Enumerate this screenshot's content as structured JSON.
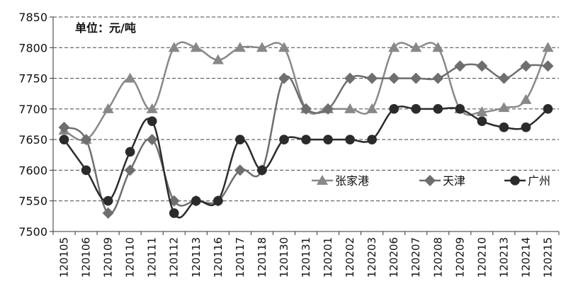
{
  "chart_data": {
    "type": "line",
    "unit_label": "单位：元/吨",
    "categories": [
      "120105",
      "120106",
      "120109",
      "120110",
      "120111",
      "120112",
      "120113",
      "120116",
      "120117",
      "120118",
      "120130",
      "120131",
      "120201",
      "120202",
      "120203",
      "120206",
      "120207",
      "120208",
      "120209",
      "120210",
      "120213",
      "120214",
      "120215"
    ],
    "ylim": [
      7500,
      7850
    ],
    "yticks": [
      7500,
      7550,
      7600,
      7650,
      7700,
      7750,
      7800,
      7850
    ],
    "grid": "horizontal-dashed",
    "legend_position": "middle-right",
    "series": [
      {
        "name": "张家港",
        "marker": "triangle",
        "color": "#888888",
        "values": [
          7665,
          7650,
          7700,
          7750,
          7700,
          7800,
          7800,
          7780,
          7800,
          7800,
          7800,
          7700,
          7700,
          7700,
          7700,
          7800,
          7800,
          7800,
          7700,
          7695,
          7702,
          7715,
          7800
        ]
      },
      {
        "name": "天津",
        "marker": "diamond",
        "color": "#6e6e6e",
        "values": [
          7670,
          7650,
          7530,
          7600,
          7650,
          7550,
          7550,
          7550,
          7600,
          7600,
          7750,
          7700,
          7700,
          7750,
          7750,
          7750,
          7750,
          7750,
          7770,
          7770,
          7750,
          7770,
          7770
        ]
      },
      {
        "name": "广州",
        "marker": "circle",
        "color": "#2b2b2b",
        "values": [
          7650,
          7600,
          7550,
          7630,
          7680,
          7530,
          7550,
          7550,
          7650,
          7600,
          7650,
          7650,
          7650,
          7650,
          7650,
          7700,
          7700,
          7700,
          7700,
          7680,
          7670,
          7670,
          7700
        ]
      }
    ]
  }
}
